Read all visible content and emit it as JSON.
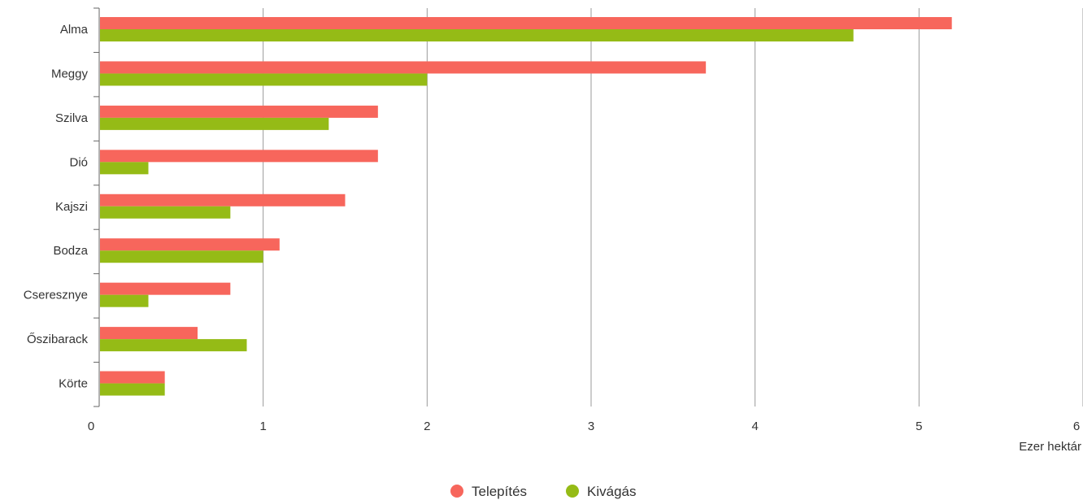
{
  "chart_data": {
    "type": "bar",
    "orientation": "horizontal",
    "categories": [
      "Alma",
      "Meggy",
      "Szilva",
      "Dió",
      "Kajszi",
      "Bodza",
      "Cseresznye",
      "Őszibarack",
      "Körte"
    ],
    "series": [
      {
        "name": "Telepítés",
        "color": "#f7665c",
        "values": [
          5.2,
          3.7,
          1.7,
          1.7,
          1.5,
          1.1,
          0.8,
          0.6,
          0.4
        ]
      },
      {
        "name": "Kivágás",
        "color": "#95bb16",
        "values": [
          4.6,
          2.0,
          1.4,
          0.3,
          0.8,
          1.0,
          0.3,
          0.9,
          0.4
        ]
      }
    ],
    "xlim": [
      0,
      6
    ],
    "xticks": [
      "0",
      "1",
      "2",
      "3",
      "4",
      "5",
      "6"
    ],
    "xlabel": "Ezer hektár",
    "grid": true,
    "legend_position": "bottom-center"
  }
}
